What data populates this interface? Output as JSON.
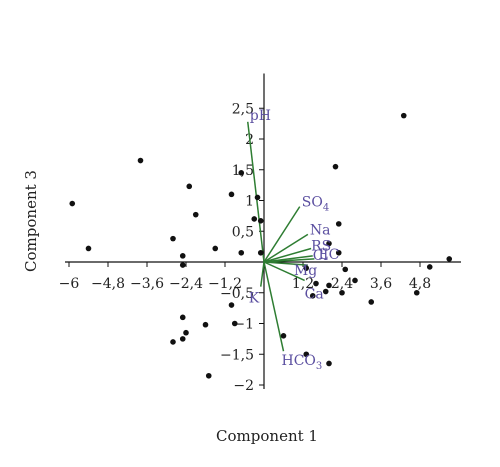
{
  "chart_data": {
    "type": "scatter",
    "title": "",
    "xlabel": "Component 1",
    "ylabel": "Component 3",
    "xlim": [
      -6,
      6
    ],
    "ylim": [
      -2,
      3
    ],
    "x_ticks": [
      -6,
      -4.8,
      -3.6,
      -2.4,
      -1.2,
      1.2,
      2.4,
      3.6,
      4.8
    ],
    "x_tick_labels": [
      "−6",
      "−4,8",
      "−3,6",
      "−2,4",
      "−1,2",
      "1,2",
      "2,4",
      "3,6",
      "4,8"
    ],
    "y_ticks": [
      -2,
      -1.5,
      -1,
      -0.5,
      0.5,
      1,
      1.5,
      2,
      2.5
    ],
    "y_tick_labels": [
      "−2",
      "−1,5",
      "−1",
      "−0,5",
      "0,5",
      "1",
      "1,5",
      "2",
      "2,5"
    ],
    "grid": false,
    "colors": {
      "points": "#111111",
      "vectors": "#2e7d32",
      "labels": "#5b4fa0",
      "axes": "#111111"
    },
    "points": [
      {
        "x": 4.3,
        "y": 2.38
      },
      {
        "x": 2.2,
        "y": 1.55
      },
      {
        "x": -3.8,
        "y": 1.65
      },
      {
        "x": -0.7,
        "y": 1.45
      },
      {
        "x": -2.3,
        "y": 1.23
      },
      {
        "x": -1.0,
        "y": 1.1
      },
      {
        "x": -0.2,
        "y": 1.05
      },
      {
        "x": -5.9,
        "y": 0.95
      },
      {
        "x": -2.1,
        "y": 0.77
      },
      {
        "x": -0.3,
        "y": 0.7
      },
      {
        "x": -0.1,
        "y": 0.67
      },
      {
        "x": 2.3,
        "y": 0.62
      },
      {
        "x": -2.8,
        "y": 0.38
      },
      {
        "x": 2.0,
        "y": 0.3
      },
      {
        "x": -5.4,
        "y": 0.22
      },
      {
        "x": -1.5,
        "y": 0.22
      },
      {
        "x": 2.3,
        "y": 0.15
      },
      {
        "x": -0.7,
        "y": 0.15
      },
      {
        "x": -0.1,
        "y": 0.15
      },
      {
        "x": -2.5,
        "y": 0.1
      },
      {
        "x": 5.7,
        "y": 0.05
      },
      {
        "x": -2.5,
        "y": -0.05
      },
      {
        "x": 5.1,
        "y": -0.08
      },
      {
        "x": 1.3,
        "y": -0.1
      },
      {
        "x": 2.5,
        "y": -0.12
      },
      {
        "x": 1.6,
        "y": -0.35
      },
      {
        "x": 2.0,
        "y": -0.38
      },
      {
        "x": 2.8,
        "y": -0.3
      },
      {
        "x": 1.9,
        "y": -0.48
      },
      {
        "x": 1.5,
        "y": -0.55
      },
      {
        "x": 2.4,
        "y": -0.5
      },
      {
        "x": 4.7,
        "y": -0.5
      },
      {
        "x": 3.3,
        "y": -0.65
      },
      {
        "x": -1.0,
        "y": -0.7
      },
      {
        "x": -2.5,
        "y": -0.9
      },
      {
        "x": -0.9,
        "y": -1.0
      },
      {
        "x": -1.8,
        "y": -1.02
      },
      {
        "x": -2.4,
        "y": -1.15
      },
      {
        "x": -2.5,
        "y": -1.25
      },
      {
        "x": -2.8,
        "y": -1.3
      },
      {
        "x": 0.6,
        "y": -1.2
      },
      {
        "x": 1.3,
        "y": -1.5
      },
      {
        "x": 2.0,
        "y": -1.65
      },
      {
        "x": -1.7,
        "y": -1.85
      }
    ],
    "vectors": [
      {
        "label": "pH",
        "x": -0.5,
        "y": 2.28
      },
      {
        "label": "SO4",
        "x": 1.1,
        "y": 0.9
      },
      {
        "label": "Na",
        "x": 1.35,
        "y": 0.45
      },
      {
        "label": "RS",
        "x": 1.45,
        "y": 0.22
      },
      {
        "label": "Cl",
        "x": 1.5,
        "y": 0.1
      },
      {
        "label": "EC",
        "x": 1.55,
        "y": 0.05
      },
      {
        "label": "Mg",
        "x": 1.35,
        "y": -0.05
      },
      {
        "label": "Ca",
        "x": 1.25,
        "y": -0.3
      },
      {
        "label": "K",
        "x": -0.1,
        "y": -0.4
      },
      {
        "label": "HCO3",
        "x": 0.6,
        "y": -1.45
      }
    ]
  }
}
